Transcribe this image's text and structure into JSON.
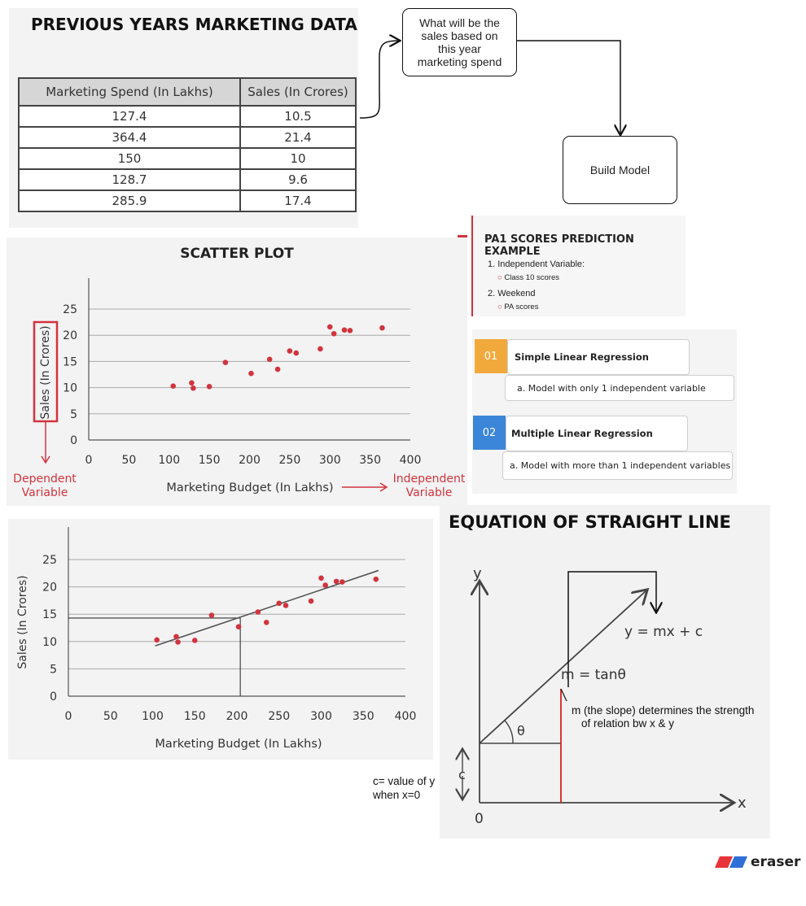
{
  "table_section": {
    "title": "PREVIOUS YEARS MARKETING DATA",
    "headers": [
      "Marketing Spend (In Lakhs)",
      "Sales (In Crores)"
    ],
    "rows": [
      [
        "127.4",
        "10.5"
      ],
      [
        "364.4",
        "21.4"
      ],
      [
        "150",
        "10"
      ],
      [
        "128.7",
        "9.6"
      ],
      [
        "285.9",
        "17.4"
      ]
    ]
  },
  "flow": {
    "question": "What will be the sales based on this year marketing spend",
    "question_lines": [
      "What will be the",
      "sales based on",
      "this year",
      "marketing spend"
    ],
    "build": "Build Model"
  },
  "pa1": {
    "title": "PA1 SCORES PREDICTION EXAMPLE",
    "items": [
      {
        "label": "1. Independent Variable:",
        "sub": "Class 10 scores"
      },
      {
        "label": "2. Weekend",
        "sub": "PA scores"
      }
    ]
  },
  "regression_types": [
    {
      "num": "01",
      "title": "Simple Linear Regression",
      "desc": "a.  Model with only 1 independent variable",
      "color": "#f2a93b"
    },
    {
      "num": "02",
      "title": "Multiple Linear Regression",
      "desc": "a. Model with more than 1 independent variables",
      "color": "#3b86d8"
    }
  ],
  "scatter": {
    "title": "SCATTER PLOT",
    "dependent_label": [
      "Dependent",
      "Variable"
    ],
    "independent_label": [
      "Independent",
      "Variable"
    ],
    "accent": "#d1343e"
  },
  "equation": {
    "title": "EQUATION OF STRAIGHT LINE",
    "y_axis": "y",
    "x_axis": "x",
    "origin": "0",
    "c_label": "c",
    "theta": "θ",
    "formula": "y = mx + c",
    "slope": "m = tanθ",
    "slope_note": [
      "m (the slope) determines the strength",
      "of relation bw x & y"
    ],
    "c_note": [
      "c= value of y",
      "when x=0"
    ],
    "line_color": "#444444",
    "red": "#d62020"
  },
  "chart_data": [
    {
      "type": "scatter",
      "title": "SCATTER PLOT",
      "xlabel": "Marketing Budget (In Lakhs)",
      "ylabel": "Sales (In Crores)",
      "xlim": [
        0,
        400
      ],
      "ylim": [
        0,
        25
      ],
      "xticks": [
        0,
        50,
        100,
        150,
        200,
        250,
        300,
        350,
        400
      ],
      "yticks": [
        0,
        5,
        10,
        15,
        20,
        25
      ],
      "grid": true,
      "points": [
        [
          105,
          10.3
        ],
        [
          128,
          10.9
        ],
        [
          130,
          9.9
        ],
        [
          150,
          10.2
        ],
        [
          170,
          14.8
        ],
        [
          202,
          12.7
        ],
        [
          225,
          15.4
        ],
        [
          235,
          13.5
        ],
        [
          250,
          17.0
        ],
        [
          258,
          16.6
        ],
        [
          288,
          17.4
        ],
        [
          300,
          21.6
        ],
        [
          305,
          20.3
        ],
        [
          318,
          21.0
        ],
        [
          325,
          20.9
        ],
        [
          365,
          21.4
        ]
      ]
    },
    {
      "type": "scatter",
      "title": "",
      "xlabel": "Marketing Budget (In Lakhs)",
      "ylabel": "Sales (In Crores)",
      "xlim": [
        0,
        400
      ],
      "ylim": [
        0,
        25
      ],
      "xticks": [
        0,
        50,
        100,
        150,
        200,
        250,
        300,
        350,
        400
      ],
      "yticks": [
        0,
        5,
        10,
        15,
        20,
        25
      ],
      "grid": true,
      "points": [
        [
          105,
          10.3
        ],
        [
          128,
          10.9
        ],
        [
          130,
          9.9
        ],
        [
          150,
          10.2
        ],
        [
          170,
          14.8
        ],
        [
          202,
          12.7
        ],
        [
          225,
          15.4
        ],
        [
          235,
          13.5
        ],
        [
          250,
          17.0
        ],
        [
          258,
          16.6
        ],
        [
          288,
          17.4
        ],
        [
          300,
          21.6
        ],
        [
          305,
          20.3
        ],
        [
          318,
          21.0
        ],
        [
          325,
          20.9
        ],
        [
          365,
          21.4
        ]
      ],
      "fit_line": {
        "x": [
          103,
          368
        ],
        "y": [
          9.2,
          23.0
        ]
      },
      "prediction": {
        "x": 204,
        "y": 14.3
      }
    }
  ],
  "brand": {
    "name": "eraser"
  }
}
